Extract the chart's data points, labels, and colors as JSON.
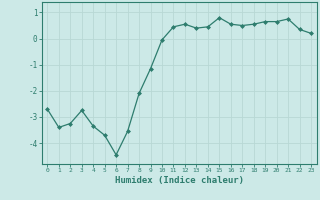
{
  "xlabel": "Humidex (Indice chaleur)",
  "x": [
    0,
    1,
    2,
    3,
    4,
    5,
    6,
    7,
    8,
    9,
    10,
    11,
    12,
    13,
    14,
    15,
    16,
    17,
    18,
    19,
    20,
    21,
    22,
    23
  ],
  "y": [
    -2.7,
    -3.4,
    -3.25,
    -2.75,
    -3.35,
    -3.7,
    -4.45,
    -3.55,
    -2.1,
    -1.15,
    -0.05,
    0.45,
    0.55,
    0.4,
    0.45,
    0.8,
    0.55,
    0.5,
    0.55,
    0.65,
    0.65,
    0.75,
    0.35,
    0.2
  ],
  "line_color": "#2e7d6e",
  "marker": "D",
  "marker_size": 2.0,
  "bg_color": "#cce9e7",
  "grid_color": "#b8d8d5",
  "axis_color": "#2e7d6e",
  "tick_color": "#2e7d6e",
  "label_color": "#2e7d6e",
  "ylim": [
    -4.8,
    1.4
  ],
  "yticks": [
    -4,
    -3,
    -2,
    -1,
    0,
    1
  ],
  "xlim": [
    -0.5,
    23.5
  ]
}
